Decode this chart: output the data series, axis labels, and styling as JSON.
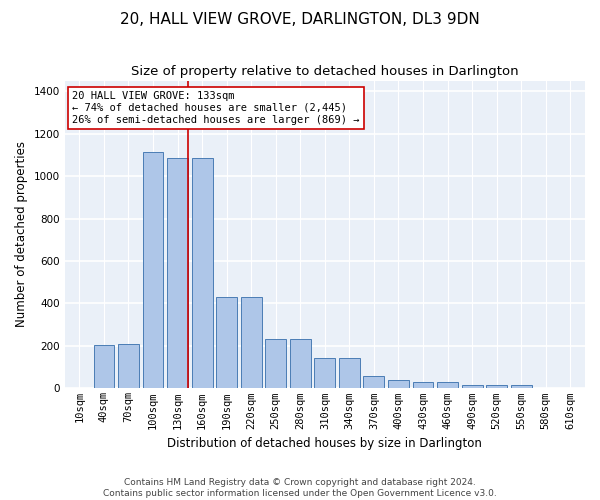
{
  "title": "20, HALL VIEW GROVE, DARLINGTON, DL3 9DN",
  "subtitle": "Size of property relative to detached houses in Darlington",
  "xlabel": "Distribution of detached houses by size in Darlington",
  "ylabel": "Number of detached properties",
  "footer_line1": "Contains HM Land Registry data © Crown copyright and database right 2024.",
  "footer_line2": "Contains public sector information licensed under the Open Government Licence v3.0.",
  "bar_labels": [
    "10sqm",
    "40sqm",
    "70sqm",
    "100sqm",
    "130sqm",
    "160sqm",
    "190sqm",
    "220sqm",
    "250sqm",
    "280sqm",
    "310sqm",
    "340sqm",
    "370sqm",
    "400sqm",
    "430sqm",
    "460sqm",
    "490sqm",
    "520sqm",
    "550sqm",
    "580sqm",
    "610sqm"
  ],
  "bar_values": [
    0,
    205,
    210,
    1115,
    1085,
    1085,
    430,
    430,
    232,
    232,
    145,
    145,
    58,
    40,
    28,
    28,
    15,
    15,
    15,
    0,
    0
  ],
  "bar_color": "#aec6e8",
  "bar_edge_color": "#4a7db5",
  "background_color": "#eaf0f8",
  "grid_color": "#ffffff",
  "property_line_color": "#cc0000",
  "annotation_text": "20 HALL VIEW GROVE: 133sqm\n← 74% of detached houses are smaller (2,445)\n26% of semi-detached houses are larger (869) →",
  "annotation_box_color": "#ffffff",
  "annotation_box_edge": "#cc0000",
  "ylim": [
    0,
    1450
  ],
  "yticks": [
    0,
    200,
    400,
    600,
    800,
    1000,
    1200,
    1400
  ],
  "title_fontsize": 11,
  "subtitle_fontsize": 9.5,
  "axis_label_fontsize": 8.5,
  "tick_fontsize": 7.5,
  "annotation_fontsize": 7.5,
  "footer_fontsize": 6.5,
  "line_x_index": 4.43
}
